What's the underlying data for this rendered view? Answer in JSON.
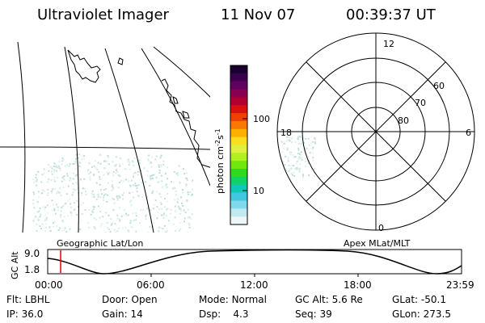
{
  "header": {
    "title": "Ultraviolet Imager",
    "date": "11 Nov 07",
    "time": "00:39:37 UT"
  },
  "left_panel": {
    "label": "Geographic Lat/Lon"
  },
  "right_panel": {
    "label": "Apex MLat/MLT",
    "mlt_labels": [
      "12",
      "18",
      "6",
      "0"
    ],
    "lat_labels": [
      "60",
      "70",
      "80"
    ]
  },
  "colorbar": {
    "unit_label": "photon cm",
    "unit_sup1": "-2",
    "unit_mid": "s",
    "unit_sup2": "-1",
    "ticks": [
      "100",
      "10"
    ],
    "colors": [
      "#1a0030",
      "#3a0050",
      "#600060",
      "#8a0050",
      "#b00030",
      "#d81010",
      "#f04000",
      "#f87800",
      "#fcb000",
      "#f8e020",
      "#e0f040",
      "#b0f020",
      "#70e810",
      "#30d820",
      "#10d070",
      "#10c8b8",
      "#40c8e0",
      "#80d8ec",
      "#c0eaf0",
      "#eef6f8"
    ]
  },
  "timeline": {
    "y_axis_label": "GC Alt",
    "y_top": "9.0",
    "y_bottom": "1.8",
    "x_labels": [
      "00:00",
      "06:00",
      "12:00",
      "18:00",
      "23:59"
    ]
  },
  "info_rows": [
    [
      {
        "label": "Flt:",
        "value": "LBHL"
      },
      {
        "label": "Door:",
        "value": "Open"
      },
      {
        "label": "Mode:",
        "value": "Normal"
      },
      {
        "label": "GC Alt:",
        "value": "5.6 Re"
      },
      {
        "label": "GLat:",
        "value": "-50.1"
      }
    ],
    [
      {
        "label": "IP:",
        "value": "36.0"
      },
      {
        "label": "Gain:",
        "value": "14"
      },
      {
        "label": "Dsp:",
        "value": "4.3"
      },
      {
        "label": "Seq:",
        "value": "39"
      },
      {
        "label": "GLon:",
        "value": "273.5"
      }
    ]
  ]
}
